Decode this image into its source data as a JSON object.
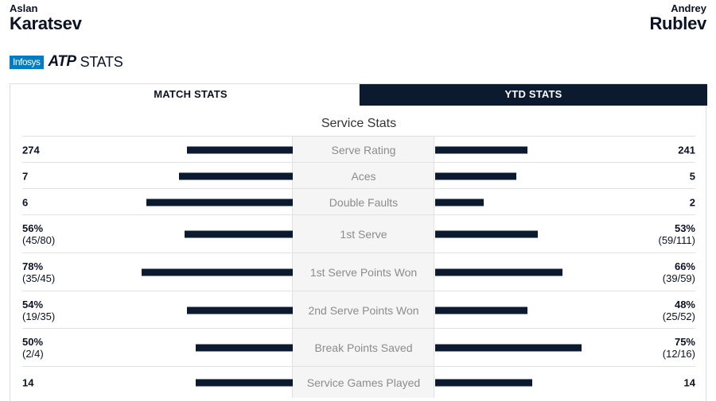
{
  "players": {
    "left": {
      "first": "Aslan",
      "last": "Karatsev"
    },
    "right": {
      "first": "Andrey",
      "last": "Rublev"
    }
  },
  "brand": {
    "sponsor": "Infosys",
    "atp": "ATP",
    "stats": "STATS"
  },
  "tabs": [
    {
      "label": "MATCH STATS",
      "active": false
    },
    {
      "label": "YTD STATS",
      "active": true
    }
  ],
  "section_title": "Service Stats",
  "bar_color": "#0b1a2f",
  "stats": [
    {
      "name": "Serve Rating",
      "left": {
        "main": "274"
      },
      "right": {
        "main": "241"
      },
      "left_fill": 0.39,
      "right_fill": 0.34
    },
    {
      "name": "Aces",
      "left": {
        "main": "7"
      },
      "right": {
        "main": "5"
      },
      "left_fill": 0.42,
      "right_fill": 0.3
    },
    {
      "name": "Double Faults",
      "left": {
        "main": "6"
      },
      "right": {
        "main": "2"
      },
      "left_fill": 0.54,
      "right_fill": 0.18
    },
    {
      "name": "1st Serve",
      "left": {
        "main": "56%",
        "sub": "(45/80)"
      },
      "right": {
        "main": "53%",
        "sub": "(59/111)"
      },
      "left_fill": 0.4,
      "right_fill": 0.38
    },
    {
      "name": "1st Serve Points Won",
      "left": {
        "main": "78%",
        "sub": "(35/45)"
      },
      "right": {
        "main": "66%",
        "sub": "(39/59)"
      },
      "left_fill": 0.56,
      "right_fill": 0.47
    },
    {
      "name": "2nd Serve Points Won",
      "left": {
        "main": "54%",
        "sub": "(19/35)"
      },
      "right": {
        "main": "48%",
        "sub": "(25/52)"
      },
      "left_fill": 0.39,
      "right_fill": 0.34
    },
    {
      "name": "Break Points Saved",
      "left": {
        "main": "50%",
        "sub": "(2/4)"
      },
      "right": {
        "main": "75%",
        "sub": "(12/16)"
      },
      "left_fill": 0.36,
      "right_fill": 0.54
    },
    {
      "name": "Service Games Played",
      "left": {
        "main": "14"
      },
      "right": {
        "main": "14"
      },
      "left_fill": 0.36,
      "right_fill": 0.36
    }
  ]
}
